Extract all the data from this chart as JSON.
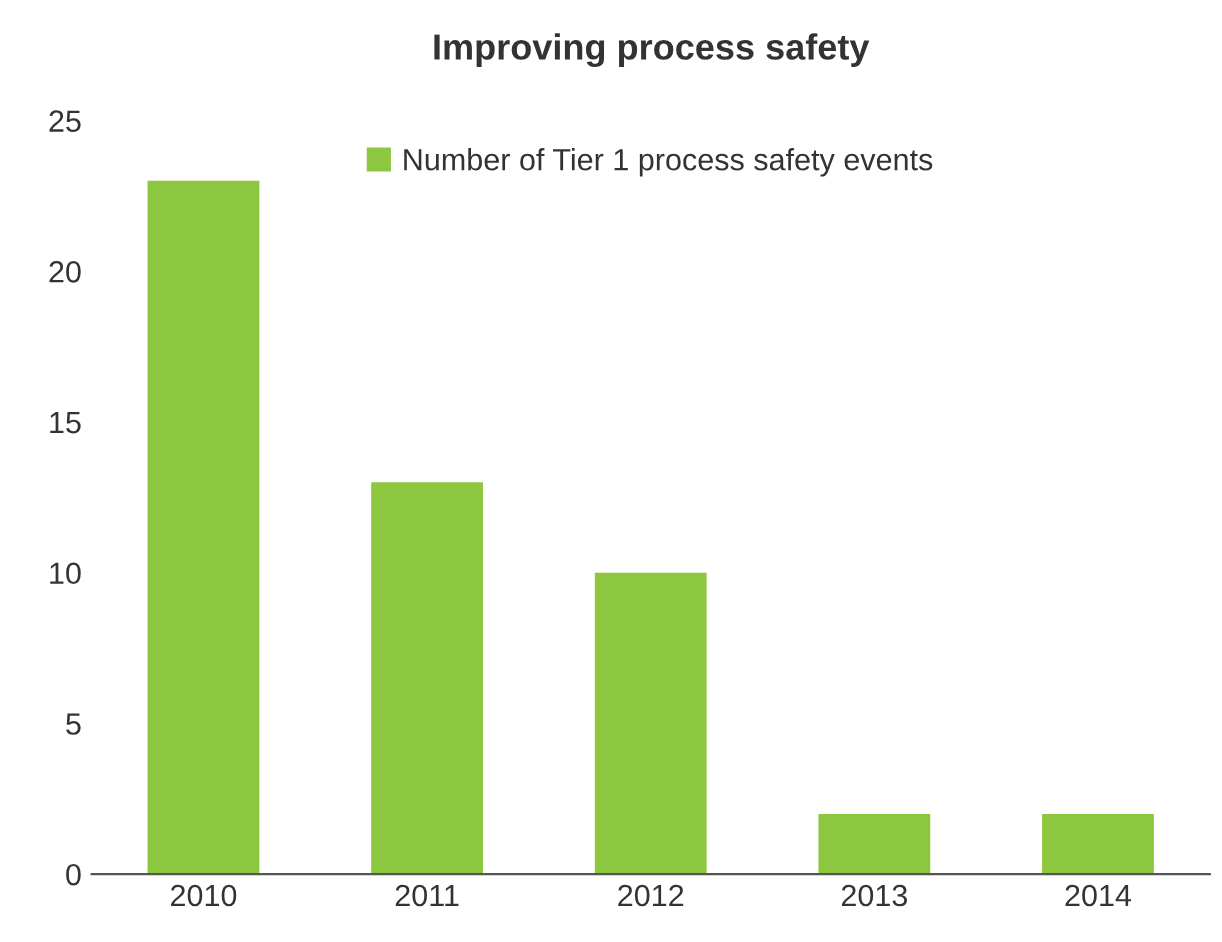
{
  "chart_data": {
    "type": "bar",
    "title": "Improving process safety",
    "categories": [
      "2010",
      "2011",
      "2012",
      "2013",
      "2014"
    ],
    "series": [
      {
        "name": "Number of Tier 1 process safety events",
        "color": "#8dc63f",
        "values": [
          23,
          13,
          10,
          2,
          2
        ]
      }
    ],
    "ylim": [
      0,
      25
    ],
    "yticks": [
      0,
      5,
      10,
      15,
      20,
      25
    ],
    "grid": false,
    "legend": "top"
  }
}
